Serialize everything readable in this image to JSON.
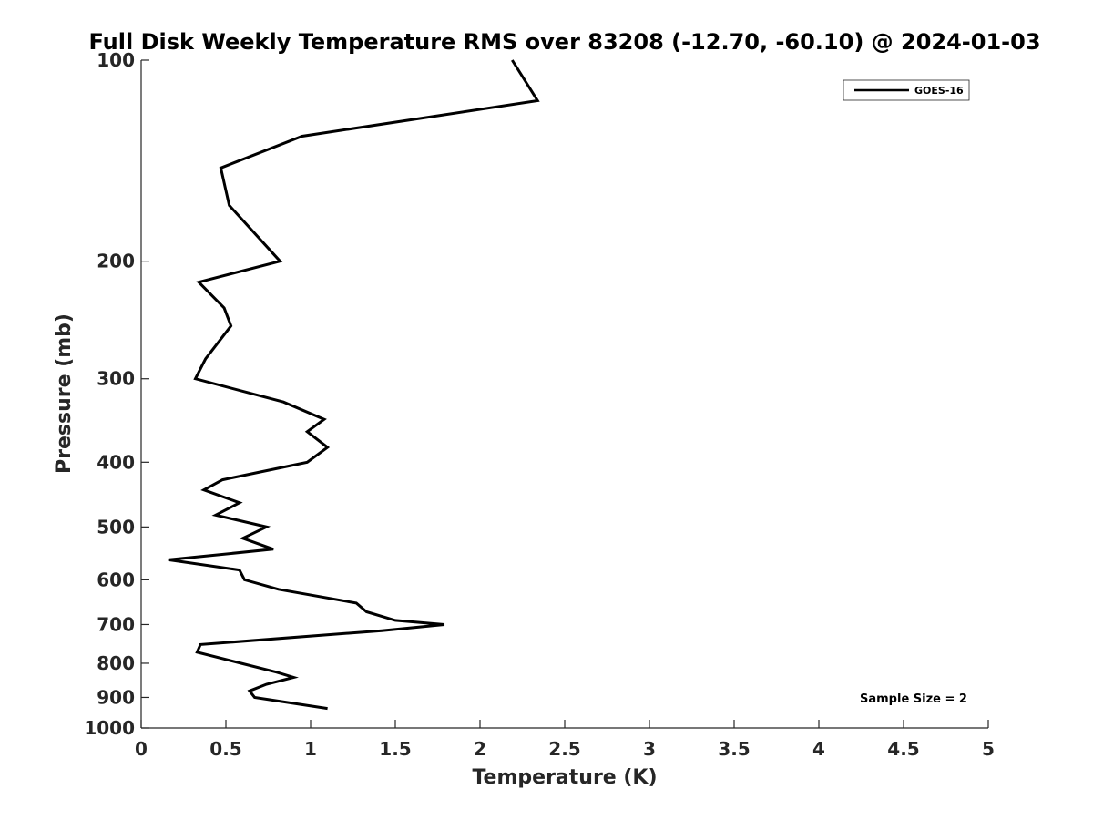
{
  "chart_data": {
    "type": "line",
    "title": "Full Disk Weekly Temperature RMS over 83208 (-12.70, -60.10) @ 2024-01-03",
    "xlabel": "Temperature (K)",
    "ylabel": "Pressure (mb)",
    "xlim": [
      0,
      5
    ],
    "ylim": [
      1000,
      100
    ],
    "yscale": "log",
    "y_reversed": true,
    "x_ticks": [
      0,
      0.5,
      1,
      1.5,
      2,
      2.5,
      3,
      3.5,
      4,
      4.5,
      5
    ],
    "x_tick_labels": [
      "0",
      "0.5",
      "1",
      "1.5",
      "2",
      "2.5",
      "3",
      "3.5",
      "4",
      "4.5",
      "5"
    ],
    "y_ticks": [
      100,
      200,
      300,
      400,
      500,
      600,
      700,
      800,
      900,
      1000
    ],
    "y_tick_labels": [
      "100",
      "200",
      "300",
      "400",
      "500",
      "600",
      "700",
      "800",
      "900",
      "1000"
    ],
    "grid": false,
    "legend_position": "top-right",
    "annotation": "Sample Size = 2",
    "series": [
      {
        "name": "GOES-16",
        "color": "#000000",
        "x": [
          2.19,
          2.34,
          0.95,
          0.47,
          0.52,
          0.82,
          0.34,
          0.49,
          0.53,
          0.38,
          0.32,
          0.84,
          1.08,
          0.98,
          1.1,
          0.98,
          0.48,
          0.37,
          0.58,
          0.44,
          0.74,
          0.6,
          0.78,
          0.16,
          0.58,
          0.61,
          0.81,
          1.27,
          1.33,
          1.5,
          1.79,
          1.42,
          0.35,
          0.33,
          0.59,
          0.8,
          0.9,
          0.74,
          0.64,
          0.67,
          1.1
        ],
        "y": [
          100,
          115,
          130,
          145,
          165,
          200,
          215,
          235,
          250,
          280,
          300,
          325,
          345,
          360,
          380,
          400,
          425,
          440,
          460,
          480,
          500,
          520,
          540,
          560,
          580,
          600,
          620,
          650,
          670,
          690,
          700,
          715,
          750,
          770,
          800,
          825,
          840,
          860,
          880,
          900,
          935
        ]
      }
    ]
  }
}
